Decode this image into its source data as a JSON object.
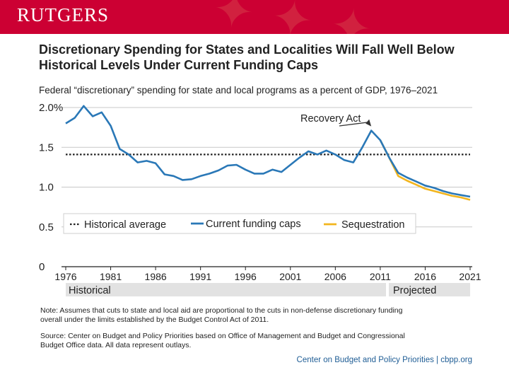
{
  "header": {
    "logo": "RUTGERS",
    "bg_color": "#cc0033"
  },
  "chart_data": {
    "type": "line",
    "title_line1": "Discretionary Spending for States and Localities Will Fall Well Below",
    "title_line2": "Historical Levels Under Current Funding Caps",
    "subtitle": "Federal “discretionary” spending for state and local programs as a percent of GDP, 1976–2021",
    "xlabel": "",
    "ylabel": "",
    "xlim": [
      1976,
      2021
    ],
    "ylim": [
      0,
      2.0
    ],
    "x_ticks": [
      "1976",
      "1981",
      "1986",
      "1991",
      "1996",
      "2001",
      "2006",
      "2011",
      "2016",
      "2021"
    ],
    "y_ticks": [
      {
        "value": 2.0,
        "label": "2.0%"
      },
      {
        "value": 1.5,
        "label": "1.5"
      },
      {
        "value": 1.0,
        "label": "1.0"
      },
      {
        "value": 0.5,
        "label": "0.5"
      },
      {
        "value": 0,
        "label": "0"
      }
    ],
    "historical_average": {
      "name": "Historical average",
      "value": 1.41,
      "color": "#222222"
    },
    "series": [
      {
        "name": "Current funding caps",
        "color": "#2a78b7",
        "x": [
          1976,
          1977,
          1978,
          1979,
          1980,
          1981,
          1982,
          1983,
          1984,
          1985,
          1986,
          1987,
          1988,
          1989,
          1990,
          1991,
          1992,
          1993,
          1994,
          1995,
          1996,
          1997,
          1998,
          1999,
          2000,
          2001,
          2002,
          2003,
          2004,
          2005,
          2006,
          2007,
          2008,
          2009,
          2010,
          2011,
          2012,
          2013,
          2014,
          2015,
          2016,
          2017,
          2018,
          2019,
          2020,
          2021
        ],
        "values": [
          1.8,
          1.87,
          2.02,
          1.89,
          1.94,
          1.77,
          1.48,
          1.41,
          1.31,
          1.33,
          1.3,
          1.16,
          1.14,
          1.09,
          1.1,
          1.14,
          1.17,
          1.21,
          1.27,
          1.28,
          1.22,
          1.17,
          1.17,
          1.22,
          1.19,
          1.28,
          1.37,
          1.45,
          1.41,
          1.46,
          1.41,
          1.34,
          1.31,
          1.5,
          1.71,
          1.59,
          1.37,
          1.18,
          1.12,
          1.07,
          1.02,
          0.99,
          0.95,
          0.92,
          0.9,
          0.88
        ]
      },
      {
        "name": "Sequestration",
        "color": "#f2b51e",
        "x": [
          2011,
          2012,
          2013,
          2014,
          2015,
          2016,
          2017,
          2018,
          2019,
          2020,
          2021
        ],
        "values": [
          1.59,
          1.37,
          1.14,
          1.08,
          1.03,
          0.98,
          0.95,
          0.92,
          0.89,
          0.87,
          0.84
        ]
      }
    ],
    "annotation": {
      "text": "Recovery Act",
      "year": 2010,
      "value": 1.71
    },
    "bands": {
      "historical": "Historical",
      "projected": "Projected"
    },
    "note_line1": "Note: Assumes that cuts to state and local aid are proportional to the cuts in non-defense discretionary funding",
    "note_line2": "overall under the limits established by the Budget Control Act of 2011.",
    "source_line1": "Source: Center on Budget and Policy Priorities based on Office of Management and Budget and Congressional",
    "source_line2": "Budget Office data. All data represent outlays.",
    "footer": "Center on Budget and Policy Priorities | cbpp.org"
  }
}
